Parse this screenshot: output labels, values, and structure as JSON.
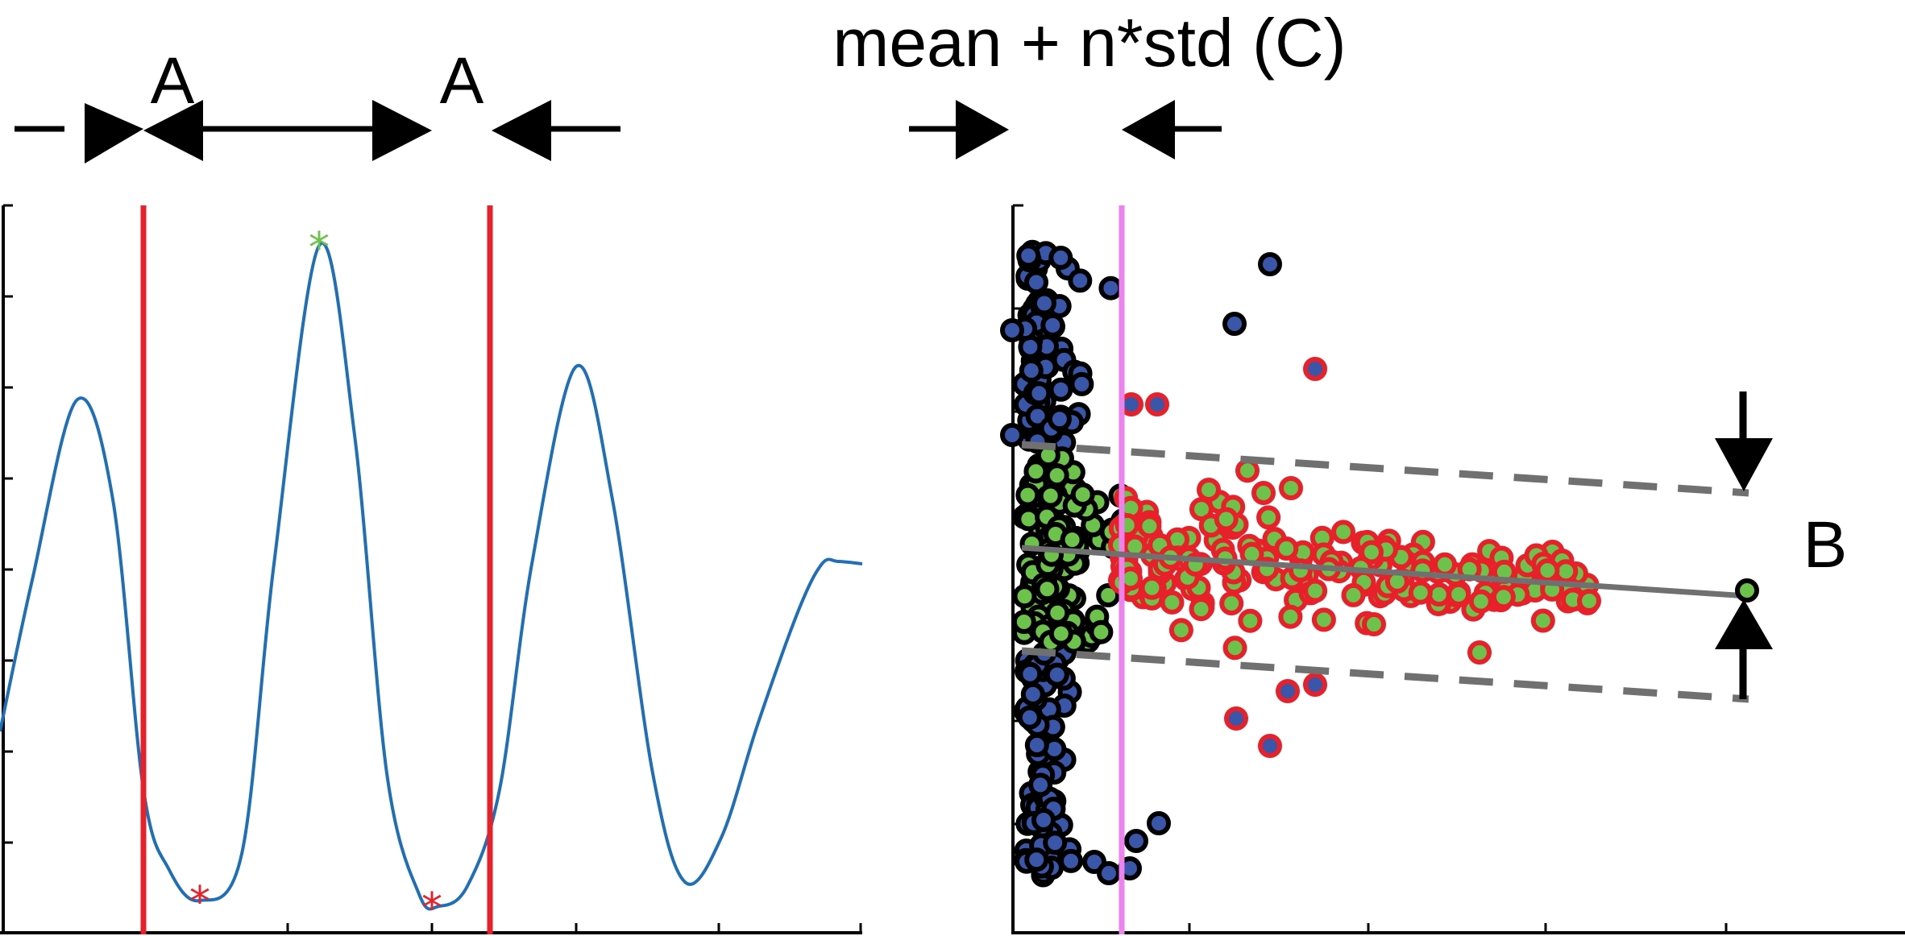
{
  "annotations": {
    "label_a_left": "A",
    "label_a_right": "A",
    "label_b": "B",
    "label_c": "mean + n*std (C)"
  },
  "colors": {
    "signal": "#1f6fb8",
    "red_line": "#e8202a",
    "peak_marker": "#6cc24a",
    "trough_marker": "#e8202a",
    "axis": "#000000",
    "magenta_line": "#ee82ee",
    "blue_point": "#3a56a8",
    "green_point": "#6cc24a",
    "red_point": "#e8202a",
    "fit_line": "#707070"
  },
  "left_panel": {
    "type": "line",
    "series": [
      {
        "name": "",
        "kind": "signal-waveform"
      }
    ],
    "markers": [
      {
        "kind": "peak",
        "symbol": "*",
        "color": "green"
      },
      {
        "kind": "trough",
        "symbol": "*",
        "color": "red"
      },
      {
        "kind": "trough",
        "symbol": "*",
        "color": "red"
      }
    ],
    "vertical_lines": 2,
    "tick_labels": "none"
  },
  "right_panel": {
    "type": "scatter",
    "groups": [
      {
        "fill": "blue",
        "edge": "black"
      },
      {
        "fill": "green",
        "edge": "black"
      },
      {
        "fill": "green",
        "edge": "red"
      },
      {
        "fill": "blue",
        "edge": "red"
      }
    ],
    "fit_line": "solid",
    "band_lines": "dashed",
    "threshold_line": "vertical",
    "tick_labels": "none"
  }
}
